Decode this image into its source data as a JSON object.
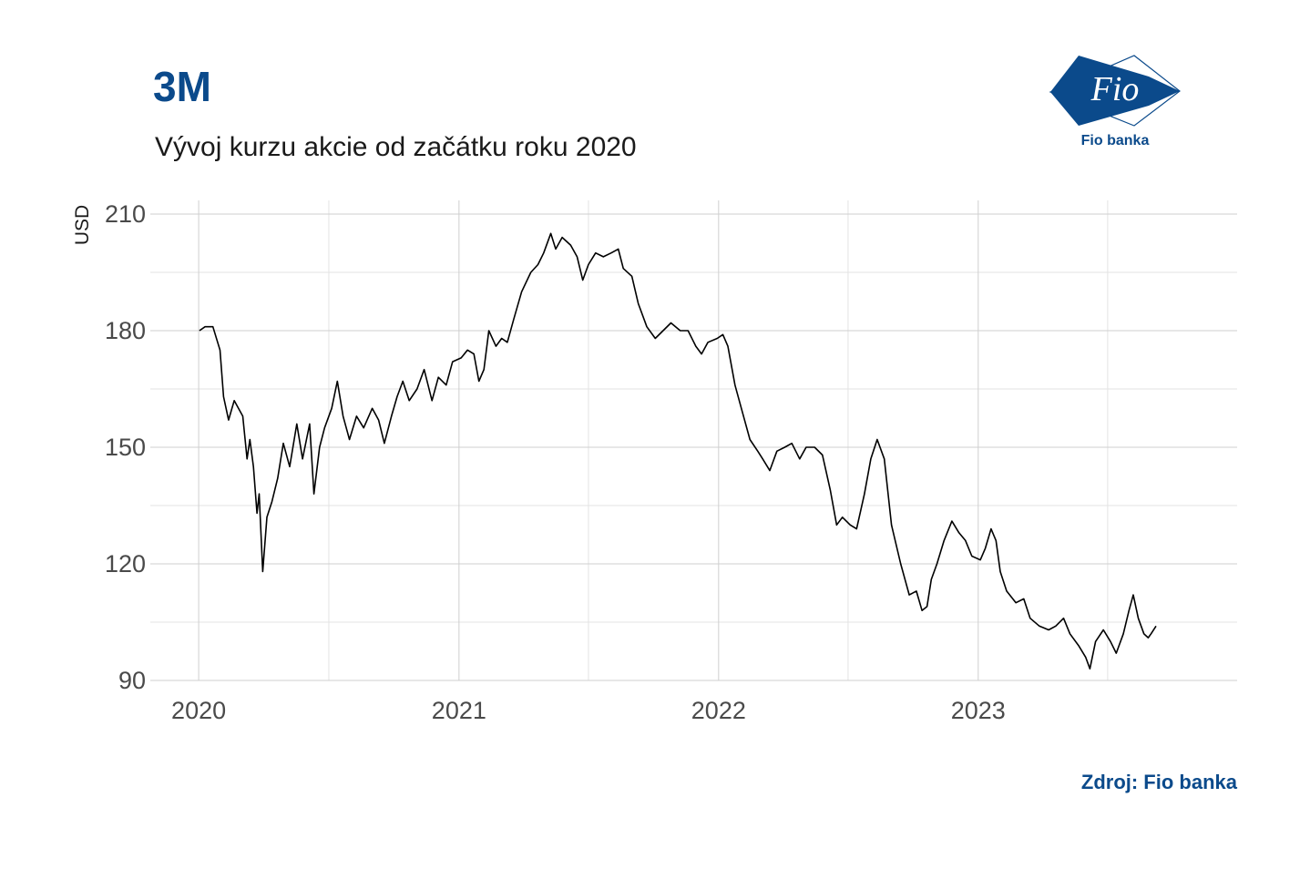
{
  "header": {
    "title": "3M",
    "subtitle": "Vývoj kurzu akcie od začátku roku 2020"
  },
  "logo": {
    "mark_text": "Fio",
    "caption": "Fio banka"
  },
  "footer": {
    "source": "Zdroj: Fio banka"
  },
  "colors": {
    "brand": "#0b4a8b",
    "line": "#000000",
    "grid": "#d0d0d0",
    "text": "#4a4a4a"
  },
  "chart_data": {
    "type": "line",
    "title": "3M",
    "subtitle": "Vývoj kurzu akcie od začátku roku 2020",
    "xlabel": "",
    "ylabel": "USD",
    "xlim": [
      "2019-10-25",
      "2023-12-31"
    ],
    "ylim": [
      90,
      210
    ],
    "x_ticks": [
      "2020",
      "2021",
      "2022",
      "2023"
    ],
    "x_tick_dates": [
      "2020-01-01",
      "2021-01-01",
      "2022-01-01",
      "2023-01-01"
    ],
    "y_ticks": [
      90,
      120,
      150,
      180,
      210
    ],
    "grid": true,
    "legend": "none",
    "series": [
      {
        "points": [
          [
            "2020-01-02",
            180
          ],
          [
            "2020-01-10",
            181
          ],
          [
            "2020-01-21",
            181
          ],
          [
            "2020-01-31",
            175
          ],
          [
            "2020-02-05",
            163
          ],
          [
            "2020-02-12",
            157
          ],
          [
            "2020-02-20",
            162
          ],
          [
            "2020-03-03",
            158
          ],
          [
            "2020-03-09",
            147
          ],
          [
            "2020-03-13",
            152
          ],
          [
            "2020-03-18",
            145
          ],
          [
            "2020-03-23",
            133
          ],
          [
            "2020-03-26",
            138
          ],
          [
            "2020-03-31",
            118
          ],
          [
            "2020-04-06",
            132
          ],
          [
            "2020-04-13",
            136
          ],
          [
            "2020-04-21",
            142
          ],
          [
            "2020-04-29",
            151
          ],
          [
            "2020-05-08",
            145
          ],
          [
            "2020-05-18",
            156
          ],
          [
            "2020-05-26",
            147
          ],
          [
            "2020-06-05",
            156
          ],
          [
            "2020-06-11",
            138
          ],
          [
            "2020-06-19",
            150
          ],
          [
            "2020-06-26",
            155
          ],
          [
            "2020-07-06",
            160
          ],
          [
            "2020-07-14",
            167
          ],
          [
            "2020-07-22",
            158
          ],
          [
            "2020-07-31",
            152
          ],
          [
            "2020-08-10",
            158
          ],
          [
            "2020-08-20",
            155
          ],
          [
            "2020-09-01",
            160
          ],
          [
            "2020-09-10",
            157
          ],
          [
            "2020-09-18",
            151
          ],
          [
            "2020-09-28",
            158
          ],
          [
            "2020-10-06",
            163
          ],
          [
            "2020-10-14",
            167
          ],
          [
            "2020-10-23",
            162
          ],
          [
            "2020-11-03",
            165
          ],
          [
            "2020-11-13",
            170
          ],
          [
            "2020-11-24",
            162
          ],
          [
            "2020-12-03",
            168
          ],
          [
            "2020-12-14",
            166
          ],
          [
            "2020-12-23",
            172
          ],
          [
            "2021-01-04",
            173
          ],
          [
            "2021-01-13",
            175
          ],
          [
            "2021-01-22",
            174
          ],
          [
            "2021-01-29",
            167
          ],
          [
            "2021-02-05",
            170
          ],
          [
            "2021-02-12",
            180
          ],
          [
            "2021-02-22",
            176
          ],
          [
            "2021-03-02",
            178
          ],
          [
            "2021-03-10",
            177
          ],
          [
            "2021-03-19",
            183
          ],
          [
            "2021-03-30",
            190
          ],
          [
            "2021-04-12",
            195
          ],
          [
            "2021-04-22",
            197
          ],
          [
            "2021-04-30",
            200
          ],
          [
            "2021-05-10",
            205
          ],
          [
            "2021-05-17",
            201
          ],
          [
            "2021-05-26",
            204
          ],
          [
            "2021-06-07",
            202
          ],
          [
            "2021-06-16",
            199
          ],
          [
            "2021-06-24",
            193
          ],
          [
            "2021-07-02",
            197
          ],
          [
            "2021-07-12",
            200
          ],
          [
            "2021-07-23",
            199
          ],
          [
            "2021-08-03",
            200
          ],
          [
            "2021-08-13",
            201
          ],
          [
            "2021-08-20",
            196
          ],
          [
            "2021-09-01",
            194
          ],
          [
            "2021-09-10",
            187
          ],
          [
            "2021-09-22",
            181
          ],
          [
            "2021-10-04",
            178
          ],
          [
            "2021-10-15",
            180
          ],
          [
            "2021-10-26",
            182
          ],
          [
            "2021-11-08",
            180
          ],
          [
            "2021-11-19",
            180
          ],
          [
            "2021-11-30",
            176
          ],
          [
            "2021-12-08",
            174
          ],
          [
            "2021-12-17",
            177
          ],
          [
            "2021-12-30",
            178
          ],
          [
            "2022-01-07",
            179
          ],
          [
            "2022-01-14",
            176
          ],
          [
            "2022-01-24",
            166
          ],
          [
            "2022-02-02",
            160
          ],
          [
            "2022-02-14",
            152
          ],
          [
            "2022-02-25",
            149
          ],
          [
            "2022-03-04",
            147
          ],
          [
            "2022-03-14",
            144
          ],
          [
            "2022-03-24",
            149
          ],
          [
            "2022-04-04",
            150
          ],
          [
            "2022-04-14",
            151
          ],
          [
            "2022-04-25",
            147
          ],
          [
            "2022-05-04",
            150
          ],
          [
            "2022-05-16",
            150
          ],
          [
            "2022-05-27",
            148
          ],
          [
            "2022-06-07",
            139
          ],
          [
            "2022-06-16",
            130
          ],
          [
            "2022-06-24",
            132
          ],
          [
            "2022-07-05",
            130
          ],
          [
            "2022-07-14",
            129
          ],
          [
            "2022-07-25",
            138
          ],
          [
            "2022-08-03",
            147
          ],
          [
            "2022-08-12",
            152
          ],
          [
            "2022-08-22",
            147
          ],
          [
            "2022-09-01",
            130
          ],
          [
            "2022-09-14",
            120
          ],
          [
            "2022-09-26",
            112
          ],
          [
            "2022-10-06",
            113
          ],
          [
            "2022-10-14",
            108
          ],
          [
            "2022-10-21",
            109
          ],
          [
            "2022-10-27",
            116
          ],
          [
            "2022-11-04",
            120
          ],
          [
            "2022-11-14",
            126
          ],
          [
            "2022-11-25",
            131
          ],
          [
            "2022-12-05",
            128
          ],
          [
            "2022-12-14",
            126
          ],
          [
            "2022-12-23",
            122
          ],
          [
            "2023-01-04",
            121
          ],
          [
            "2023-01-11",
            124
          ],
          [
            "2023-01-19",
            129
          ],
          [
            "2023-01-26",
            126
          ],
          [
            "2023-02-01",
            118
          ],
          [
            "2023-02-10",
            113
          ],
          [
            "2023-02-23",
            110
          ],
          [
            "2023-03-06",
            111
          ],
          [
            "2023-03-15",
            106
          ],
          [
            "2023-03-28",
            104
          ],
          [
            "2023-04-10",
            103
          ],
          [
            "2023-04-20",
            104
          ],
          [
            "2023-05-01",
            106
          ],
          [
            "2023-05-10",
            102
          ],
          [
            "2023-05-22",
            99
          ],
          [
            "2023-06-01",
            96
          ],
          [
            "2023-06-07",
            93
          ],
          [
            "2023-06-15",
            100
          ],
          [
            "2023-06-26",
            103
          ],
          [
            "2023-07-06",
            100
          ],
          [
            "2023-07-14",
            97
          ],
          [
            "2023-07-24",
            102
          ],
          [
            "2023-08-01",
            108
          ],
          [
            "2023-08-07",
            112
          ],
          [
            "2023-08-14",
            106
          ],
          [
            "2023-08-22",
            102
          ],
          [
            "2023-08-28",
            101
          ],
          [
            "2023-09-01",
            102
          ],
          [
            "2023-09-08",
            104
          ]
        ]
      }
    ]
  }
}
